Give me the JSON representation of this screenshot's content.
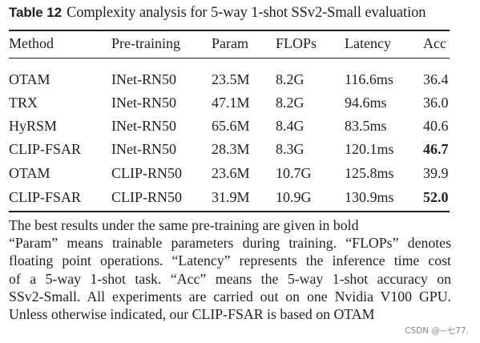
{
  "caption": {
    "label": "Table 12",
    "text": "Complexity analysis for 5-way 1-shot SSv2-Small evaluation"
  },
  "table": {
    "headers": [
      "Method",
      "Pre-training",
      "Param",
      "FLOPs",
      "Latency",
      "Acc"
    ],
    "rows": [
      {
        "method": "OTAM",
        "pretraining": "INet-RN50",
        "param": "23.5M",
        "flops": "8.2G",
        "latency": "116.6ms",
        "acc": "36.4",
        "acc_bold": false
      },
      {
        "method": "TRX",
        "pretraining": "INet-RN50",
        "param": "47.1M",
        "flops": "8.2G",
        "latency": "94.6ms",
        "acc": "36.0",
        "acc_bold": false
      },
      {
        "method": "HyRSM",
        "pretraining": "INet-RN50",
        "param": "65.6M",
        "flops": "8.4G",
        "latency": "83.5ms",
        "acc": "40.6",
        "acc_bold": false
      },
      {
        "method": "CLIP-FSAR",
        "pretraining": "INet-RN50",
        "param": "28.3M",
        "flops": "8.3G",
        "latency": "120.1ms",
        "acc": "46.7",
        "acc_bold": true
      },
      {
        "method": "OTAM",
        "pretraining": "CLIP-RN50",
        "param": "23.6M",
        "flops": "10.7G",
        "latency": "125.8ms",
        "acc": "39.9",
        "acc_bold": false
      },
      {
        "method": "CLIP-FSAR",
        "pretraining": "CLIP-RN50",
        "param": "31.9M",
        "flops": "10.9G",
        "latency": "130.9ms",
        "acc": "52.0",
        "acc_bold": true
      }
    ]
  },
  "notes": {
    "line1": "The best results under the same pre-training are given in bold",
    "line2": "“Param” means trainable parameters during training. “FLOPs” denotes",
    "line3": "floating point operations. “Latency” represents the inference time cost",
    "line4": "of a 5-way 1-shot task. “Acc” means the 5-way 1-shot accuracy on",
    "line5": "SSv2-Small. All experiments are carried out on one Nvidia V100 GPU.",
    "line6": "Unless otherwise indicated, our CLIP-FSAR is based on OTAM"
  },
  "watermark": "CSDN @~七77."
}
